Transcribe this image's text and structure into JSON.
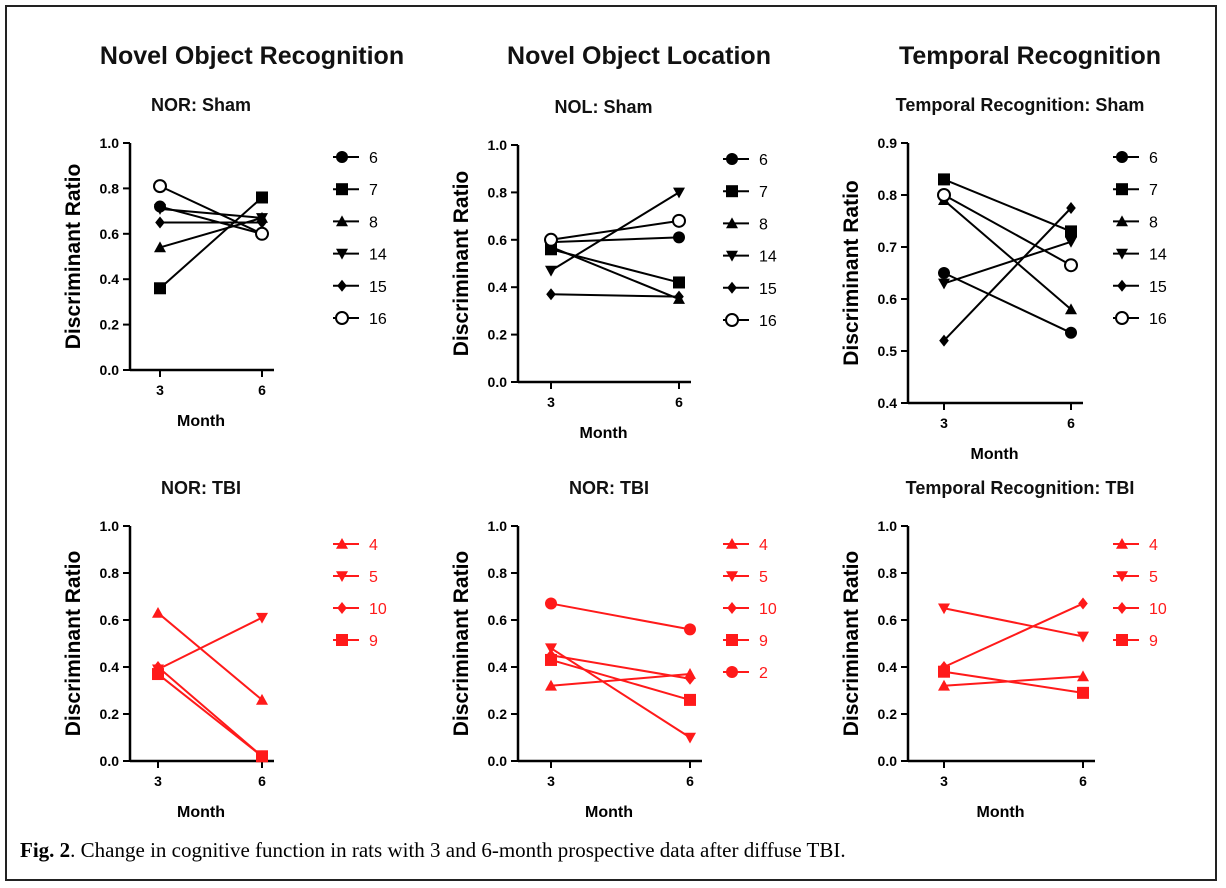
{
  "column_titles": [
    "Novel Object Recognition",
    "Novel Object Location",
    "Temporal Recognition"
  ],
  "caption": {
    "label": "Fig. 2",
    "text": ". Change in cognitive function in rats with 3 and 6-month prospective data after diffuse TBI."
  },
  "colors": {
    "sham": "#000000",
    "tbi": "#ff1a1a"
  },
  "chart_data": [
    {
      "type": "line",
      "title": "NOR: Sham",
      "xlabel": "Month",
      "ylabel": "Discriminant Ratio",
      "x": [
        3,
        6
      ],
      "ylim": [
        0.0,
        1.0
      ],
      "yticks": [
        0.0,
        0.2,
        0.4,
        0.6,
        0.8,
        1.0
      ],
      "tick_decimals": 1,
      "color": "sham",
      "series": [
        {
          "name": "6",
          "marker": "circle",
          "values": [
            0.72,
            0.6
          ]
        },
        {
          "name": "7",
          "marker": "square",
          "values": [
            0.36,
            0.76
          ]
        },
        {
          "name": "8",
          "marker": "triangle-up",
          "values": [
            0.54,
            0.67
          ]
        },
        {
          "name": "14",
          "marker": "triangle-down",
          "values": [
            0.71,
            0.67
          ]
        },
        {
          "name": "15",
          "marker": "diamond",
          "values": [
            0.65,
            0.65
          ]
        },
        {
          "name": "16",
          "marker": "circle-open",
          "values": [
            0.81,
            0.6
          ]
        }
      ]
    },
    {
      "type": "line",
      "title": "NOL: Sham",
      "xlabel": "Month",
      "ylabel": "Discriminant Ratio",
      "x": [
        3,
        6
      ],
      "ylim": [
        0.0,
        1.0
      ],
      "yticks": [
        0.0,
        0.2,
        0.4,
        0.6,
        0.8,
        1.0
      ],
      "tick_decimals": 1,
      "color": "sham",
      "series": [
        {
          "name": "6",
          "marker": "circle",
          "values": [
            0.59,
            0.61
          ]
        },
        {
          "name": "7",
          "marker": "square",
          "values": [
            0.56,
            0.42
          ]
        },
        {
          "name": "8",
          "marker": "triangle-up",
          "values": [
            0.57,
            0.35
          ]
        },
        {
          "name": "14",
          "marker": "triangle-down",
          "values": [
            0.47,
            0.8
          ]
        },
        {
          "name": "15",
          "marker": "diamond",
          "values": [
            0.37,
            0.36
          ]
        },
        {
          "name": "16",
          "marker": "circle-open",
          "values": [
            0.6,
            0.68
          ]
        }
      ]
    },
    {
      "type": "line",
      "title": "Temporal Recognition: Sham",
      "xlabel": "Month",
      "ylabel": "Discriminant Ratio",
      "x": [
        3,
        6
      ],
      "ylim": [
        0.4,
        0.9
      ],
      "yticks": [
        0.4,
        0.5,
        0.6,
        0.7,
        0.8,
        0.9
      ],
      "tick_decimals": 1,
      "color": "sham",
      "series": [
        {
          "name": "6",
          "marker": "circle",
          "values": [
            0.65,
            0.535
          ]
        },
        {
          "name": "7",
          "marker": "square",
          "values": [
            0.83,
            0.73
          ]
        },
        {
          "name": "8",
          "marker": "triangle-up",
          "values": [
            0.79,
            0.58
          ]
        },
        {
          "name": "14",
          "marker": "triangle-down",
          "values": [
            0.63,
            0.71
          ]
        },
        {
          "name": "15",
          "marker": "diamond",
          "values": [
            0.52,
            0.775
          ]
        },
        {
          "name": "16",
          "marker": "circle-open",
          "values": [
            0.8,
            0.665
          ]
        }
      ]
    },
    {
      "type": "line",
      "title": "NOR: TBI",
      "xlabel": "Month",
      "ylabel": "Discriminant Ratio",
      "x": [
        3,
        6
      ],
      "ylim": [
        0.0,
        1.0
      ],
      "yticks": [
        0.0,
        0.2,
        0.4,
        0.6,
        0.8,
        1.0
      ],
      "tick_decimals": 1,
      "color": "tbi",
      "series": [
        {
          "name": "4",
          "marker": "triangle-up",
          "values": [
            0.63,
            0.26
          ]
        },
        {
          "name": "5",
          "marker": "triangle-down",
          "values": [
            0.39,
            0.61
          ]
        },
        {
          "name": "10",
          "marker": "diamond",
          "values": [
            0.4,
            0.02
          ]
        },
        {
          "name": "9",
          "marker": "square",
          "values": [
            0.37,
            0.02
          ]
        }
      ]
    },
    {
      "type": "line",
      "title": "NOR: TBI",
      "xlabel": "Month",
      "ylabel": "Discriminant Ratio",
      "x": [
        3,
        6
      ],
      "ylim": [
        0.0,
        1.0
      ],
      "yticks": [
        0.0,
        0.2,
        0.4,
        0.6,
        0.8,
        1.0
      ],
      "tick_decimals": 1,
      "color": "tbi",
      "series": [
        {
          "name": "4",
          "marker": "triangle-up",
          "values": [
            0.32,
            0.37
          ]
        },
        {
          "name": "5",
          "marker": "triangle-down",
          "values": [
            0.48,
            0.1
          ]
        },
        {
          "name": "10",
          "marker": "diamond",
          "values": [
            0.45,
            0.35
          ]
        },
        {
          "name": "9",
          "marker": "square",
          "values": [
            0.43,
            0.26
          ]
        },
        {
          "name": "2",
          "marker": "circle",
          "values": [
            0.67,
            0.56
          ]
        }
      ]
    },
    {
      "type": "line",
      "title": "Temporal Recognition: TBI",
      "xlabel": "Month",
      "ylabel": "Discriminant Ratio",
      "x": [
        3,
        6
      ],
      "ylim": [
        0.0,
        1.0
      ],
      "yticks": [
        0.0,
        0.2,
        0.4,
        0.6,
        0.8,
        1.0
      ],
      "tick_decimals": 1,
      "color": "tbi",
      "series": [
        {
          "name": "4",
          "marker": "triangle-up",
          "values": [
            0.32,
            0.36
          ]
        },
        {
          "name": "5",
          "marker": "triangle-down",
          "values": [
            0.65,
            0.53
          ]
        },
        {
          "name": "10",
          "marker": "diamond",
          "values": [
            0.4,
            0.67
          ]
        },
        {
          "name": "9",
          "marker": "square",
          "values": [
            0.38,
            0.29
          ]
        }
      ]
    }
  ]
}
